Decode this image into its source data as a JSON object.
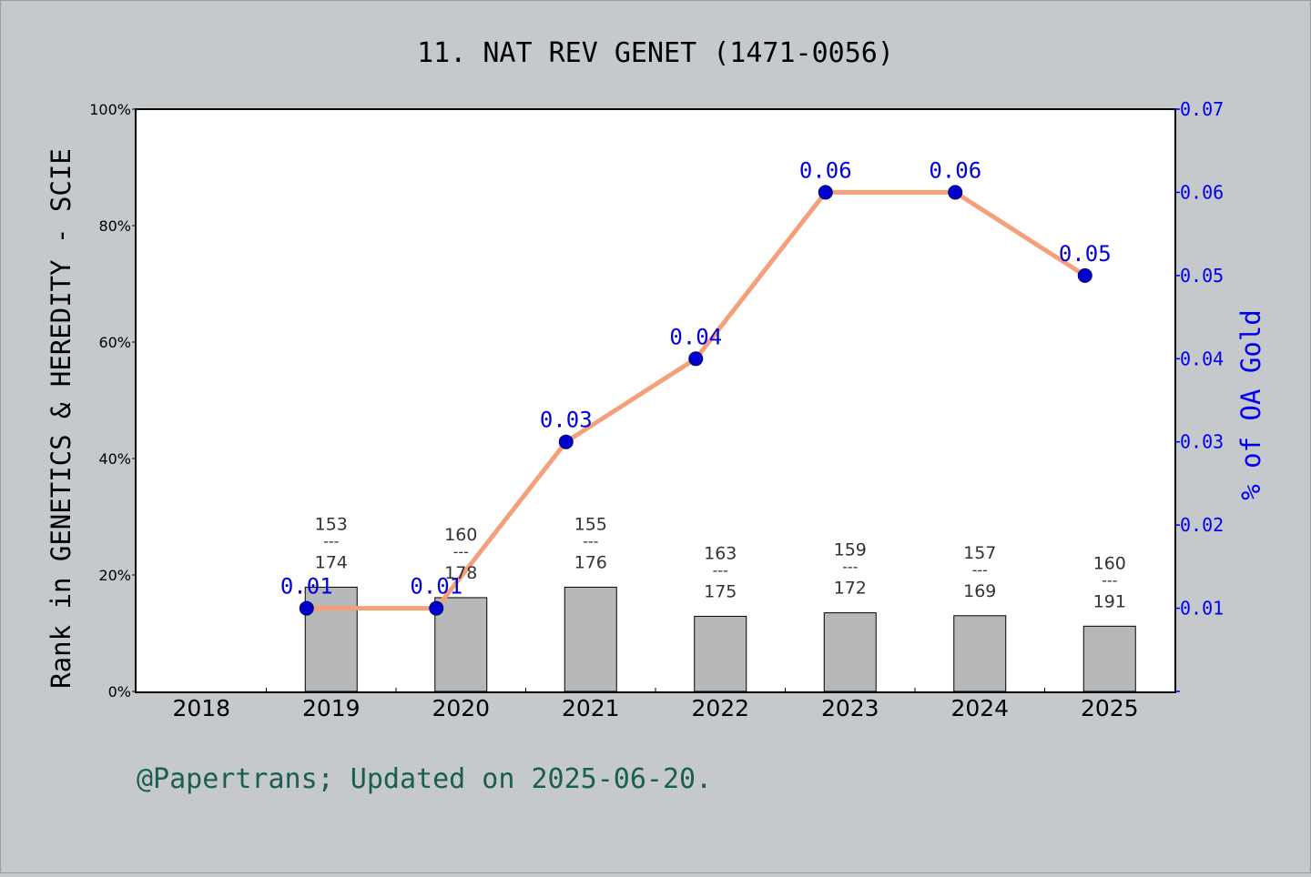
{
  "chart_data": {
    "type": "bar",
    "title": "11. NAT REV GENET (1471-0056)",
    "categories": [
      "2018",
      "2019",
      "2020",
      "2021",
      "2022",
      "2023",
      "2024",
      "2025"
    ],
    "ylabel": "Rank in GENETICS & HEREDITY - SCIE",
    "ylabel_right": "% of OA Gold",
    "ylim": [
      0,
      100
    ],
    "ylim_right": [
      0,
      0.07
    ],
    "y_ticks": [
      "0%",
      "20%",
      "40%",
      "60%",
      "80%",
      "100%"
    ],
    "y_right_ticks": [
      "0.01",
      "0.02",
      "0.03",
      "0.04",
      "0.05",
      "0.06",
      "0.07"
    ],
    "bars": {
      "values": [
        null,
        17.9,
        16.1,
        17.9,
        12.9,
        13.5,
        13.0,
        11.2
      ],
      "rank_labels": [
        null,
        {
          "rank": "153",
          "sep": "---",
          "total": "174"
        },
        {
          "rank": "160",
          "sep": "---",
          "total": "178"
        },
        {
          "rank": "155",
          "sep": "---",
          "total": "176"
        },
        {
          "rank": "163",
          "sep": "---",
          "total": "175"
        },
        {
          "rank": "159",
          "sep": "---",
          "total": "172"
        },
        {
          "rank": "157",
          "sep": "---",
          "total": "169"
        },
        {
          "rank": "160",
          "sep": "---",
          "total": "191"
        }
      ],
      "color": "#b7b8b9"
    },
    "line": {
      "values": [
        null,
        0.01,
        0.01,
        0.03,
        0.04,
        0.06,
        0.06,
        0.05
      ],
      "labels": [
        null,
        "0.01",
        "0.01",
        "0.03",
        "0.04",
        "0.06",
        "0.06",
        "0.05"
      ],
      "line_color": "#f4a07a",
      "marker_color": "#0000cc",
      "label_color": "#0000dd"
    },
    "grid": false,
    "footer": "@Papertrans; Updated on 2025-06-20."
  }
}
